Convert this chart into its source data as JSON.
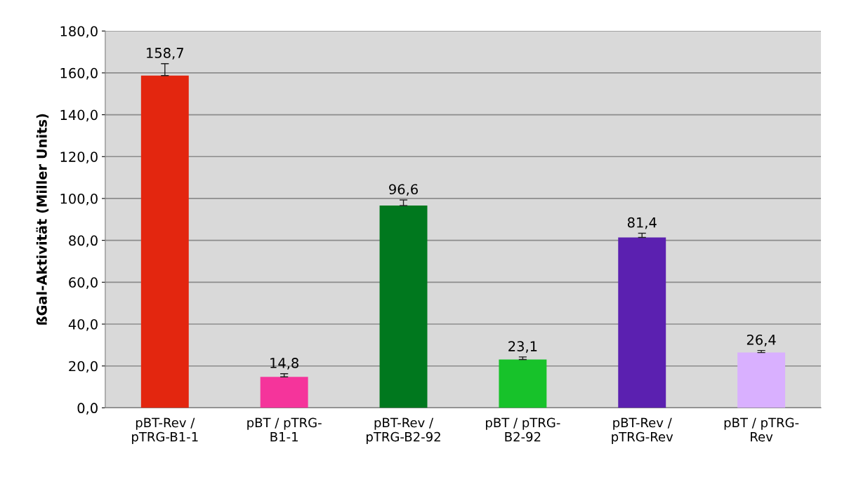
{
  "chart_data": {
    "type": "bar",
    "ylabel": "ßGal-Aktivität (Miller Units)",
    "categories": [
      "pBT-Rev /\npTRG-B1-1",
      "pBT / pTRG-\nB1-1",
      "pBT-Rev /\npTRG-B2-92",
      "pBT / pTRG-\nB2-92",
      "pBT-Rev /\npTRG-Rev",
      "pBT / pTRG-\nRev"
    ],
    "values": [
      158.7,
      14.8,
      96.6,
      23.1,
      81.4,
      26.4
    ],
    "value_labels": [
      "158,7",
      "14,8",
      "96,6",
      "23,1",
      "81,4",
      "26,4"
    ],
    "errors": [
      [
        158.7,
        164.4
      ],
      [
        14.8,
        16.3
      ],
      [
        96.6,
        99.3
      ],
      [
        23.1,
        24.3
      ],
      [
        81.4,
        83.4
      ],
      [
        26.4,
        27.4
      ]
    ],
    "colors": [
      "#e3260f",
      "#f5349b",
      "#00781e",
      "#17c22a",
      "#5b20b0",
      "#d9b0ff"
    ],
    "ylim": [
      0,
      180
    ],
    "yticks": [
      {
        "value": 0,
        "label": "0,0"
      },
      {
        "value": 20,
        "label": "20,0"
      },
      {
        "value": 40,
        "label": "40,0"
      },
      {
        "value": 60,
        "label": "60,0"
      },
      {
        "value": 80,
        "label": "80,0"
      },
      {
        "value": 100,
        "label": "100,0"
      },
      {
        "value": 120,
        "label": "120,0"
      },
      {
        "value": 140,
        "label": "140,0"
      },
      {
        "value": 160,
        "label": "160,0"
      },
      {
        "value": 180,
        "label": "180,0"
      }
    ],
    "grid": "y"
  }
}
